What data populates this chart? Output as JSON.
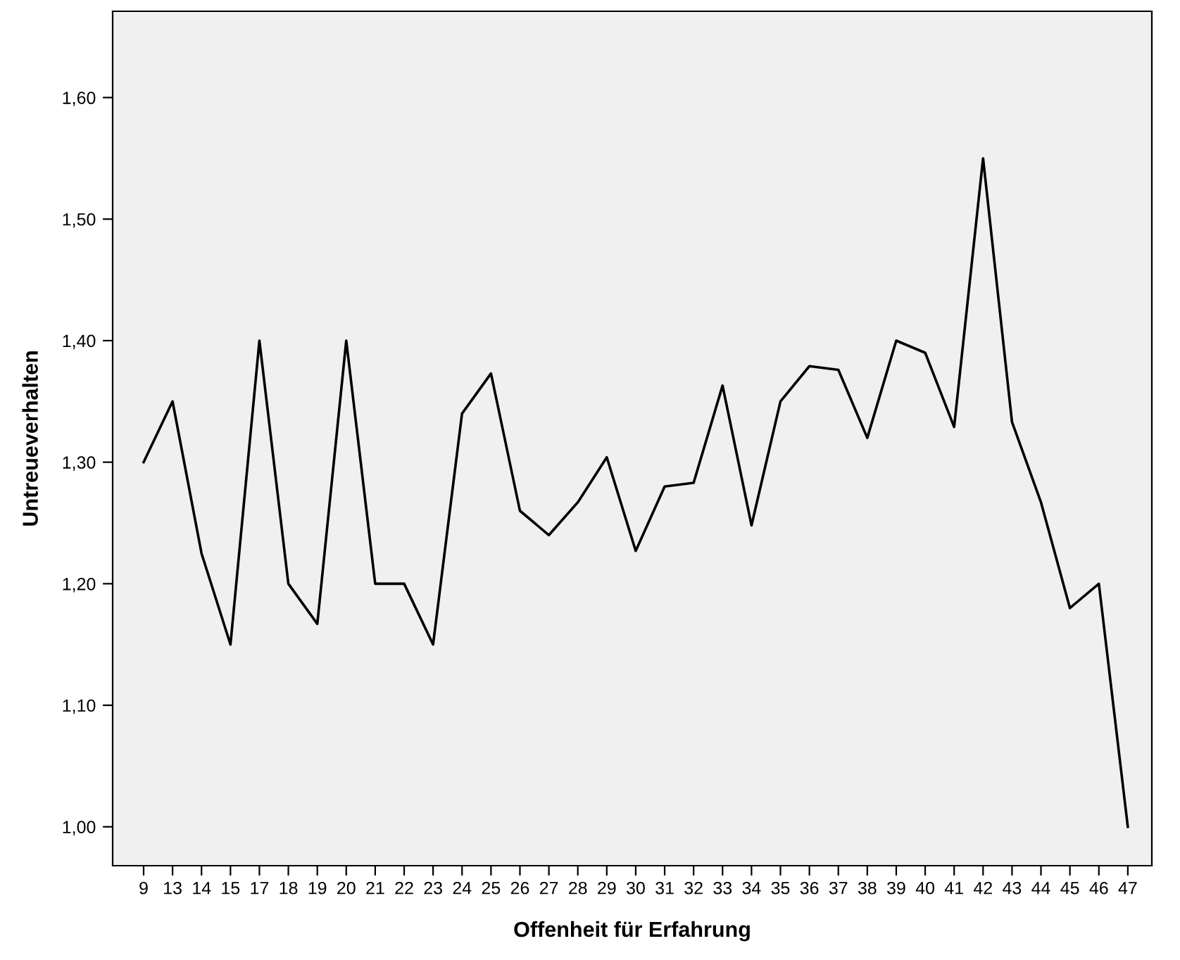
{
  "chart_data": {
    "type": "line",
    "xlabel": "Offenheit für Erfahrung",
    "ylabel": "Untreueverhalten",
    "categories": [
      "9",
      "13",
      "14",
      "15",
      "17",
      "18",
      "19",
      "20",
      "21",
      "22",
      "23",
      "24",
      "25",
      "26",
      "27",
      "28",
      "29",
      "30",
      "31",
      "32",
      "33",
      "34",
      "35",
      "36",
      "37",
      "38",
      "39",
      "40",
      "41",
      "42",
      "43",
      "44",
      "45",
      "46",
      "47"
    ],
    "series": [
      {
        "color": "#000000",
        "values": [
          1.3,
          1.35,
          1.225,
          1.15,
          1.4,
          1.2,
          1.167,
          1.4,
          1.2,
          1.2,
          1.15,
          1.34,
          1.373,
          1.26,
          1.24,
          1.267,
          1.304,
          1.227,
          1.28,
          1.283,
          1.363,
          1.248,
          1.35,
          1.379,
          1.376,
          1.32,
          1.4,
          1.39,
          1.329,
          1.55,
          1.333,
          1.267,
          1.18,
          1.2,
          1.0
        ]
      }
    ],
    "ylim": [
      0.968,
      1.671
    ],
    "yticks": [
      {
        "value": 1.0,
        "label": "1,00"
      },
      {
        "value": 1.1,
        "label": "1,10"
      },
      {
        "value": 1.2,
        "label": "1,20"
      },
      {
        "value": 1.3,
        "label": "1,30"
      },
      {
        "value": 1.4,
        "label": "1,40"
      },
      {
        "value": 1.5,
        "label": "1,50"
      },
      {
        "value": 1.6,
        "label": "1,60"
      }
    ],
    "grid": false,
    "marker": "none",
    "line_style": "solid"
  }
}
